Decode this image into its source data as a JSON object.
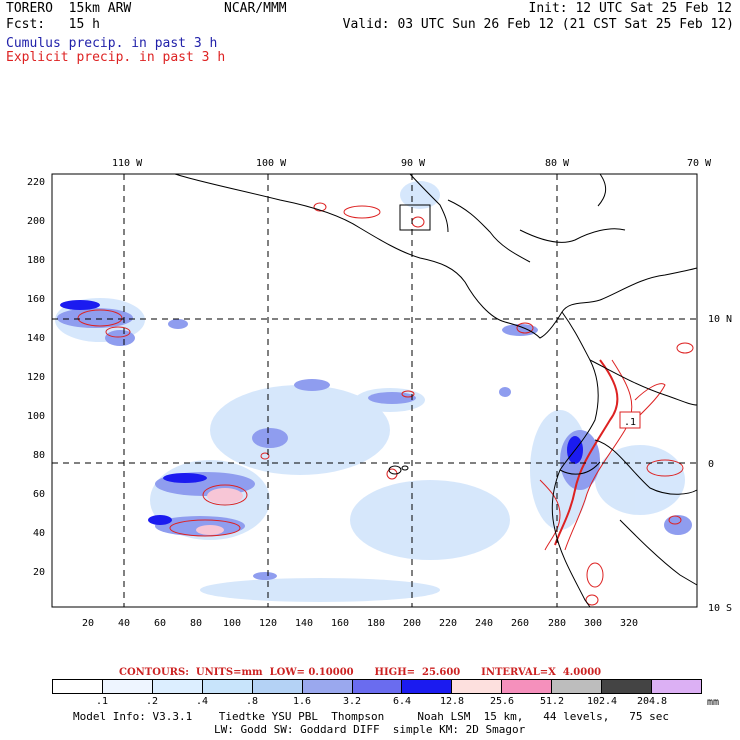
{
  "header": {
    "model_line": "TORERO  15km ARW",
    "org": "NCAR/MMM",
    "init": "Init: 12 UTC Sat 25 Feb 12",
    "fcst": "Fcst:   15 h",
    "valid": "Valid: 03 UTC Sun 26 Feb 12 (21 CST Sat 25 Feb 12)"
  },
  "legend": {
    "cumulus": "Cumulus precip. in past 3 h",
    "explicit": "Explicit precip. in past 3 h"
  },
  "map": {
    "lon_labels": [
      "110 W",
      "100 W",
      "90 W",
      "80 W",
      "70 W"
    ],
    "lat_labels": [
      "10 N",
      "0",
      "10 S"
    ],
    "y_ticks": [
      "220",
      "200",
      "180",
      "160",
      "140",
      "120",
      "100",
      "80",
      "60",
      "40",
      "20"
    ],
    "x_ticks": [
      "20",
      "40",
      "60",
      "80",
      "100",
      "120",
      "140",
      "160",
      "180",
      "200",
      "220",
      "240",
      "260",
      "280",
      "300",
      "320"
    ],
    "box_label": ".1"
  },
  "contours": {
    "text": "CONTOURS:  UNITS=mm  LOW= 0.10000      HIGH=  25.600      INTERVAL=X  4.0000",
    "units": "mm",
    "low": 0.1,
    "high": 25.6,
    "interval": 4.0
  },
  "colorbar": {
    "colors": [
      "#ffffff",
      "#eef5ff",
      "#dceeff",
      "#c8e4fb",
      "#b4d2f5",
      "#9aa8ee",
      "#6a6cef",
      "#1b1bf0",
      "#fde0de",
      "#f590bc",
      "#bdbdbd",
      "#444444",
      "#dcb0f4"
    ],
    "labels": [
      ".1",
      ".2",
      ".4",
      ".8",
      "1.6",
      "3.2",
      "6.4",
      "12.8",
      "25.6",
      "51.2",
      "102.4",
      "204.8"
    ],
    "unit": "mm"
  },
  "footer": {
    "line1": "Model Info: V3.3.1    Tiedtke YSU PBL  Thompson     Noah LSM  15 km,   44 levels,   75 sec",
    "line2": "LW: Godd SW: Goddard DIFF  simple KM: 2D Smagor"
  }
}
